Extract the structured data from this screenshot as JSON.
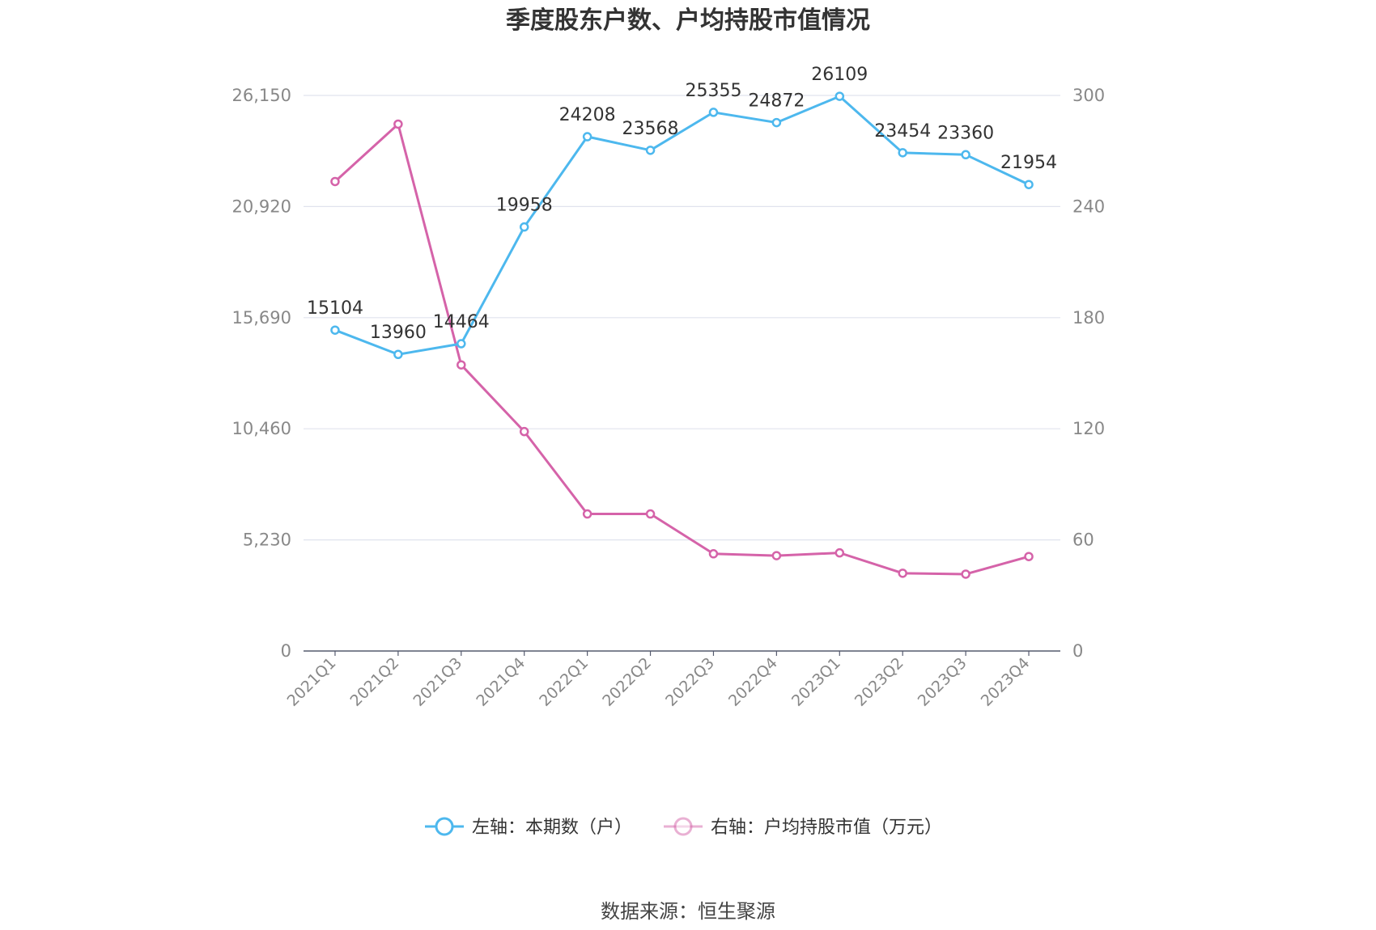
{
  "chart_data": {
    "type": "line",
    "title": "季度股东户数、户均持股市值情况",
    "categories": [
      "2021Q1",
      "2021Q2",
      "2021Q3",
      "2021Q4",
      "2022Q1",
      "2022Q2",
      "2022Q3",
      "2022Q4",
      "2023Q1",
      "2023Q2",
      "2023Q3",
      "2023Q4"
    ],
    "left_axis": {
      "ticks": [
        "0",
        "5,230",
        "10,460",
        "15,690",
        "20,920",
        "26,150"
      ],
      "ylim": [
        0,
        26150
      ]
    },
    "right_axis": {
      "ticks": [
        "0",
        "60",
        "120",
        "180",
        "240",
        "300"
      ],
      "ylim": [
        0,
        300
      ]
    },
    "grid": true,
    "legend_position": "bottom",
    "series": [
      {
        "name": "左轴：本期数（户）",
        "axis": "left",
        "color": "#4db8ee",
        "values": [
          15104,
          13960,
          14464,
          19958,
          24208,
          23568,
          25355,
          24872,
          26109,
          23454,
          23360,
          21954
        ],
        "labels": [
          "15104",
          "13960",
          "14464",
          "19958",
          "24208",
          "23568",
          "25355",
          "24872",
          "26109",
          "23454",
          "23360",
          "21954"
        ]
      },
      {
        "name": "右轴：户均持股市值（万元）",
        "axis": "right",
        "color": "#d563a9",
        "values": [
          253.5,
          284.5,
          154.5,
          118.5,
          74.0,
          74.0,
          52.5,
          51.5,
          53.0,
          42.0,
          41.5,
          51.0
        ]
      }
    ],
    "source": "数据来源：恒生聚源"
  }
}
